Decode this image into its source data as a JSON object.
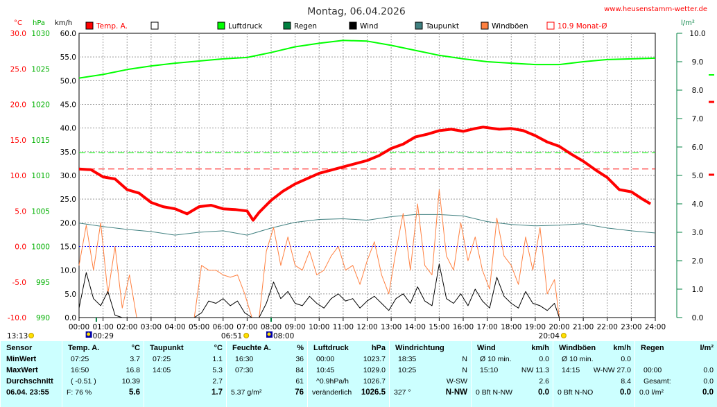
{
  "title": "Montag, 06.04.2026",
  "website": "www.heusenstamm-wetter.de",
  "axis_units": {
    "temp": "°C",
    "pressure": "hPa",
    "wind": "km/h",
    "rain": "l/m²"
  },
  "legend": [
    {
      "label": "Temp. A.",
      "color": "#ff0000",
      "style": "filled"
    },
    {
      "label": "",
      "color": "#000000",
      "style": "empty"
    },
    {
      "label": "Luftdruck",
      "color": "#00ff00",
      "style": "filled"
    },
    {
      "label": "Regen",
      "color": "#008040",
      "style": "filled"
    },
    {
      "label": "Wind",
      "color": "#000000",
      "style": "filled"
    },
    {
      "label": "Taupunkt",
      "color": "#408080",
      "style": "filled"
    },
    {
      "label": "Windböen",
      "color": "#ff8040",
      "style": "filled"
    },
    {
      "label": "10.9 Monat-Ø",
      "color": "#ff0000",
      "style": "outline"
    }
  ],
  "events": [
    {
      "time": "13:13",
      "x_hour": -1.3,
      "icon": "sun"
    },
    {
      "time": "00:29",
      "x_hour": 0.48,
      "icon": "moon"
    },
    {
      "time": "06:51",
      "x_hour": 6.85,
      "icon": "sun"
    },
    {
      "time": "08:00",
      "x_hour": 8.0,
      "icon": "moon"
    },
    {
      "time": "20:04",
      "x_hour": 20.07,
      "icon": "sun"
    }
  ],
  "chart_data": {
    "type": "line",
    "title": "Montag, 06.04.2026",
    "x_ticks": [
      "00:00",
      "01:00",
      "02:00",
      "03:00",
      "04:00",
      "05:00",
      "06:00",
      "07:00",
      "08:00",
      "09:00",
      "10:00",
      "11:00",
      "12:00",
      "13:00",
      "14:00",
      "15:00",
      "16:00",
      "17:00",
      "18:00",
      "19:00",
      "20:00",
      "21:00",
      "22:00",
      "23:00",
      "24:00"
    ],
    "xlim": [
      0,
      24
    ],
    "axes": {
      "temp_c": {
        "ticks": [
          "30.0",
          "25.0",
          "20.0",
          "15.0",
          "10.0",
          "5.0",
          "0.0",
          "-5.0",
          "-10.0"
        ],
        "range": [
          -10,
          30
        ],
        "color": "#ff0000"
      },
      "pressure_hpa": {
        "ticks": [
          "1030",
          "1025",
          "1020",
          "1015",
          "1010",
          "1005",
          "1000",
          "995",
          "990"
        ],
        "range": [
          990,
          1030
        ],
        "color": "#00b000"
      },
      "wind_kmh": {
        "ticks": [
          "60.0",
          "55.0",
          "50.0",
          "45.0",
          "40.0",
          "35.0",
          "30.0",
          "25.0",
          "20.0",
          "15.0",
          "10.0",
          "5.0",
          "0.0"
        ],
        "range": [
          0,
          60
        ],
        "color": "#000000"
      },
      "rain_lm2": {
        "ticks": [
          "10.0",
          "9.0",
          "8.0",
          "7.0",
          "6.0",
          "5.0",
          "4.0",
          "3.0",
          "2.0",
          "1.0",
          "0.0"
        ],
        "range": [
          0,
          10
        ],
        "color": "#008040"
      }
    },
    "reference_lines": [
      {
        "name": "Monat-Ø Temp",
        "axis": "temp_c",
        "value": 10.9,
        "color": "#ff0000",
        "dash": true
      },
      {
        "name": "Pressure mean",
        "axis": "pressure_hpa",
        "value": 1013.2,
        "color": "#00ff00",
        "dash": true
      },
      {
        "name": "Zero °C",
        "axis": "temp_c",
        "value": 0.0,
        "color": "#0000ff",
        "dash": true
      }
    ],
    "series": [
      {
        "name": "Temp. A.",
        "axis": "temp_c",
        "color": "#ff0000",
        "x": [
          0,
          0.5,
          1,
          1.5,
          2,
          2.5,
          3,
          3.5,
          4,
          4.5,
          5,
          5.5,
          6,
          6.5,
          7,
          7.25,
          7.5,
          8,
          8.5,
          9,
          10,
          11,
          12,
          12.5,
          13,
          13.5,
          14,
          14.5,
          15,
          15.5,
          16,
          16.5,
          16.83,
          17.5,
          18,
          18.5,
          19,
          19.5,
          20,
          20.5,
          21,
          21.5,
          22,
          22.5,
          23,
          23.5,
          23.8
        ],
        "y": [
          10.9,
          10.8,
          9.8,
          9.5,
          8.0,
          7.5,
          6.2,
          5.6,
          5.3,
          4.6,
          5.6,
          5.8,
          5.3,
          5.2,
          5.0,
          3.7,
          4.8,
          6.5,
          7.8,
          8.8,
          10.3,
          11.2,
          12.1,
          12.8,
          13.8,
          14.4,
          15.4,
          15.8,
          16.3,
          16.5,
          16.2,
          16.6,
          16.8,
          16.5,
          16.6,
          16.3,
          15.6,
          14.7,
          14.1,
          13.0,
          12.0,
          10.8,
          9.7,
          8.0,
          7.7,
          6.6,
          6.0
        ]
      },
      {
        "name": "Luftdruck",
        "axis": "pressure_hpa",
        "color": "#00ff00",
        "x": [
          0,
          1,
          2,
          3,
          4,
          5,
          6,
          7,
          8,
          9,
          10,
          11,
          12,
          13,
          14,
          15,
          16,
          17,
          18,
          19,
          20,
          21,
          22,
          23,
          24
        ],
        "y": [
          1023.7,
          1024.2,
          1024.9,
          1025.4,
          1025.8,
          1026.1,
          1026.4,
          1026.6,
          1027.3,
          1028.1,
          1028.6,
          1029.0,
          1028.9,
          1028.3,
          1027.6,
          1026.9,
          1026.4,
          1026.0,
          1025.8,
          1025.6,
          1025.6,
          1026.0,
          1026.3,
          1026.4,
          1026.5
        ]
      },
      {
        "name": "Taupunkt",
        "axis": "temp_c",
        "color": "#408080",
        "x": [
          0,
          1,
          2,
          3,
          4,
          5,
          6,
          7,
          8,
          9,
          10,
          11,
          12,
          13,
          14,
          15,
          16,
          17,
          18,
          19,
          20,
          21,
          22,
          23,
          24
        ],
        "y": [
          3.3,
          2.8,
          2.4,
          2.1,
          1.6,
          2.0,
          2.2,
          1.6,
          2.6,
          3.4,
          3.8,
          3.9,
          3.7,
          4.2,
          4.5,
          4.5,
          4.3,
          3.5,
          3.1,
          2.9,
          3.0,
          3.2,
          2.6,
          2.2,
          1.9
        ]
      },
      {
        "name": "Wind",
        "axis": "wind_kmh",
        "color": "#000000",
        "x": [
          0,
          0.3,
          0.6,
          0.9,
          1.2,
          1.5,
          1.8,
          2.1,
          2.4,
          2.7,
          3,
          3.3,
          3.6,
          3.9,
          4.2,
          4.5,
          4.8,
          5.1,
          5.4,
          5.7,
          6,
          6.3,
          6.6,
          6.9,
          7.2,
          7.5,
          7.8,
          8.1,
          8.4,
          8.7,
          9,
          9.3,
          9.6,
          9.9,
          10.2,
          10.5,
          10.8,
          11.1,
          11.4,
          11.7,
          12,
          12.3,
          12.6,
          12.9,
          13.2,
          13.5,
          13.8,
          14.1,
          14.4,
          14.7,
          15,
          15.3,
          15.6,
          15.9,
          16.2,
          16.5,
          16.8,
          17.1,
          17.4,
          17.7,
          18,
          18.3,
          18.6,
          18.9,
          19.2,
          19.5,
          19.8,
          20.0
        ],
        "y": [
          2.0,
          9.5,
          4.0,
          2.5,
          5.5,
          0.5,
          0,
          0,
          0,
          0,
          0,
          0,
          0,
          0,
          0,
          0,
          0,
          1.0,
          3.5,
          3.0,
          4.0,
          2.5,
          3.5,
          1.0,
          0,
          0,
          3.0,
          7.5,
          4.0,
          5.5,
          3.0,
          2.5,
          4.5,
          3.0,
          2.0,
          4.0,
          5.0,
          3.5,
          4.0,
          2.0,
          3.5,
          4.5,
          3.0,
          1.5,
          4.0,
          5.0,
          3.0,
          6.5,
          3.5,
          2.5,
          11.3,
          4.0,
          3.0,
          5.0,
          2.5,
          6.0,
          3.5,
          2.0,
          8.5,
          4.5,
          3.0,
          2.0,
          5.5,
          3.0,
          2.5,
          1.5,
          3.0,
          0
        ]
      },
      {
        "name": "Windböen",
        "axis": "wind_kmh",
        "color": "#ff8040",
        "x": [
          0,
          0.3,
          0.6,
          0.9,
          1.2,
          1.5,
          1.8,
          2.1,
          2.4,
          2.7,
          3,
          3.3,
          3.6,
          3.9,
          4.2,
          4.5,
          4.8,
          5.1,
          5.4,
          5.7,
          6,
          6.3,
          6.6,
          6.9,
          7.2,
          7.5,
          7.8,
          8.1,
          8.4,
          8.7,
          9,
          9.3,
          9.6,
          9.9,
          10.2,
          10.5,
          10.8,
          11.1,
          11.4,
          11.7,
          12,
          12.3,
          12.6,
          12.9,
          13.2,
          13.5,
          13.8,
          14.1,
          14.4,
          14.7,
          15,
          15.3,
          15.6,
          15.9,
          16.2,
          16.5,
          16.8,
          17.1,
          17.4,
          17.7,
          18,
          18.3,
          18.6,
          18.9,
          19.2,
          19.5,
          19.8,
          20.0
        ],
        "y": [
          11.0,
          19.5,
          10.0,
          20.0,
          5.0,
          15.0,
          2.0,
          9.0,
          0,
          0,
          0,
          0,
          0,
          0,
          0,
          0,
          0,
          11.0,
          10.0,
          10.0,
          9.0,
          8.5,
          9.0,
          5.0,
          0,
          0,
          14.0,
          19.0,
          11.0,
          17.0,
          11.0,
          10.0,
          14.0,
          9.0,
          10.0,
          13.0,
          15.0,
          10.0,
          11.0,
          7.0,
          12.0,
          16.0,
          9.0,
          5.0,
          14.0,
          22.0,
          10.0,
          24.0,
          11.0,
          9.0,
          27.0,
          13.0,
          10.0,
          20.0,
          12.0,
          17.0,
          10.0,
          6.0,
          21.0,
          13.0,
          11.0,
          7.0,
          17.0,
          10.0,
          19.0,
          5.0,
          8.0,
          0
        ]
      }
    ]
  },
  "table": {
    "columns": [
      {
        "header": "Sensor",
        "unit": "",
        "rows": [
          "MinWert",
          "MaxWert",
          "Durchschnitt",
          "06.04. 23:55"
        ]
      },
      {
        "header": "Temp. A.",
        "unit": "°C",
        "rows_left": [
          "07:25",
          "16:50",
          "( -0.51 )",
          "F: 76 %"
        ],
        "rows_right": [
          "3.7",
          "16.8",
          "10.39",
          "5.6"
        ]
      },
      {
        "header": "Taupunkt",
        "unit": "°C",
        "rows_left": [
          "07:25",
          "14:05",
          "",
          ""
        ],
        "rows_right": [
          "1.1",
          "5.3",
          "2.7",
          "1.7"
        ]
      },
      {
        "header": "Feuchte A.",
        "unit": "%",
        "rows_left": [
          "16:30",
          "07:30",
          "",
          "5.37 g/m²"
        ],
        "rows_right": [
          "36",
          "84",
          "61",
          "76"
        ]
      },
      {
        "header": "Luftdruck",
        "unit": "hPa",
        "rows_left": [
          "00:00",
          "10:45",
          "^0.9hPa/h",
          "veränderlich"
        ],
        "rows_right": [
          "1023.7",
          "1029.0",
          "1026.7",
          "1026.5"
        ]
      },
      {
        "header": "Windrichtung",
        "unit": "",
        "rows_left": [
          "18:35",
          "10:25",
          "",
          "327 °"
        ],
        "rows_right": [
          "N",
          "N",
          "W-SW",
          "N-NW"
        ]
      },
      {
        "header": "Wind",
        "unit": "km/h",
        "rows_left": [
          "Ø 10 min.",
          "15:10",
          "",
          "0 Bft N-NW"
        ],
        "rows_right": [
          "0.0",
          "NW 11.3",
          "2.6",
          "0.0"
        ]
      },
      {
        "header": "Windböen",
        "unit": "km/h",
        "rows_left": [
          "Ø 10 min.",
          "14:15",
          "",
          "0 Bft N-NO"
        ],
        "rows_right": [
          "0.0",
          "W-NW 27.0",
          "8.4",
          "0.0"
        ]
      },
      {
        "header": "Regen",
        "unit": "l/m²",
        "rows_left": [
          "",
          "00:00",
          "Gesamt:",
          "0.0 l/m²"
        ],
        "rows_right": [
          "",
          "0.0",
          "0.0",
          "0.0"
        ]
      }
    ]
  }
}
